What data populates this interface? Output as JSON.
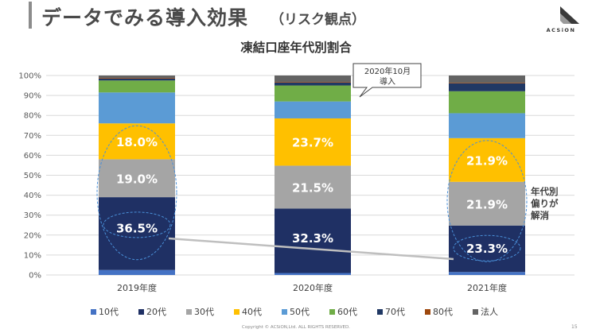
{
  "slide": {
    "title": "データでみる導入効果",
    "subtitle": "（リスク観点）",
    "logo_text": "ACSiON",
    "footer": "Copyright © ACSiON,Ltd. ALL RIGHTS RESERVED.",
    "page_number": "15"
  },
  "chart_data": {
    "type": "bar",
    "stacked": true,
    "title": "凍結口座年代別割合",
    "categories": [
      "2019年度",
      "2020年度",
      "2021年度"
    ],
    "yticks": [
      "0%",
      "10%",
      "20%",
      "30%",
      "40%",
      "50%",
      "60%",
      "70%",
      "80%",
      "90%",
      "100%"
    ],
    "ylim": [
      0,
      100
    ],
    "grid": true,
    "legend_position": "bottom",
    "series": [
      {
        "name": "10代",
        "color": "#4472c4",
        "values": [
          2.5,
          1.0,
          1.5
        ]
      },
      {
        "name": "20代",
        "color": "#1f3064",
        "values": [
          36.5,
          32.3,
          23.3
        ]
      },
      {
        "name": "30代",
        "color": "#a5a5a5",
        "values": [
          19.0,
          21.5,
          21.9
        ]
      },
      {
        "name": "40代",
        "color": "#ffc000",
        "values": [
          18.0,
          23.7,
          21.9
        ]
      },
      {
        "name": "50代",
        "color": "#5b9bd5",
        "values": [
          15.5,
          8.5,
          12.5
        ]
      },
      {
        "name": "60代",
        "color": "#70ad47",
        "values": [
          6.0,
          8.0,
          11.0
        ]
      },
      {
        "name": "70代",
        "color": "#203864",
        "values": [
          1.0,
          1.5,
          4.0
        ]
      },
      {
        "name": "80代",
        "color": "#9e480e",
        "values": [
          0.3,
          0.3,
          0.3
        ]
      },
      {
        "name": "法人",
        "color": "#636363",
        "values": [
          1.2,
          3.2,
          3.6
        ]
      }
    ],
    "data_labels": [
      {
        "category": 0,
        "series": 1,
        "text": "36.5%"
      },
      {
        "category": 0,
        "series": 2,
        "text": "19.0%"
      },
      {
        "category": 0,
        "series": 3,
        "text": "18.0%"
      },
      {
        "category": 1,
        "series": 1,
        "text": "32.3%"
      },
      {
        "category": 1,
        "series": 2,
        "text": "21.5%"
      },
      {
        "category": 1,
        "series": 3,
        "text": "23.7%"
      },
      {
        "category": 2,
        "series": 1,
        "text": "23.3%"
      },
      {
        "category": 2,
        "series": 2,
        "text": "21.9%"
      },
      {
        "category": 2,
        "series": 3,
        "text": "21.9%"
      }
    ],
    "callout": {
      "line1": "2020年10月",
      "line2": "導入"
    },
    "side_note": {
      "line1": "年代別",
      "line2": "偏りが",
      "line3": "解消"
    }
  }
}
